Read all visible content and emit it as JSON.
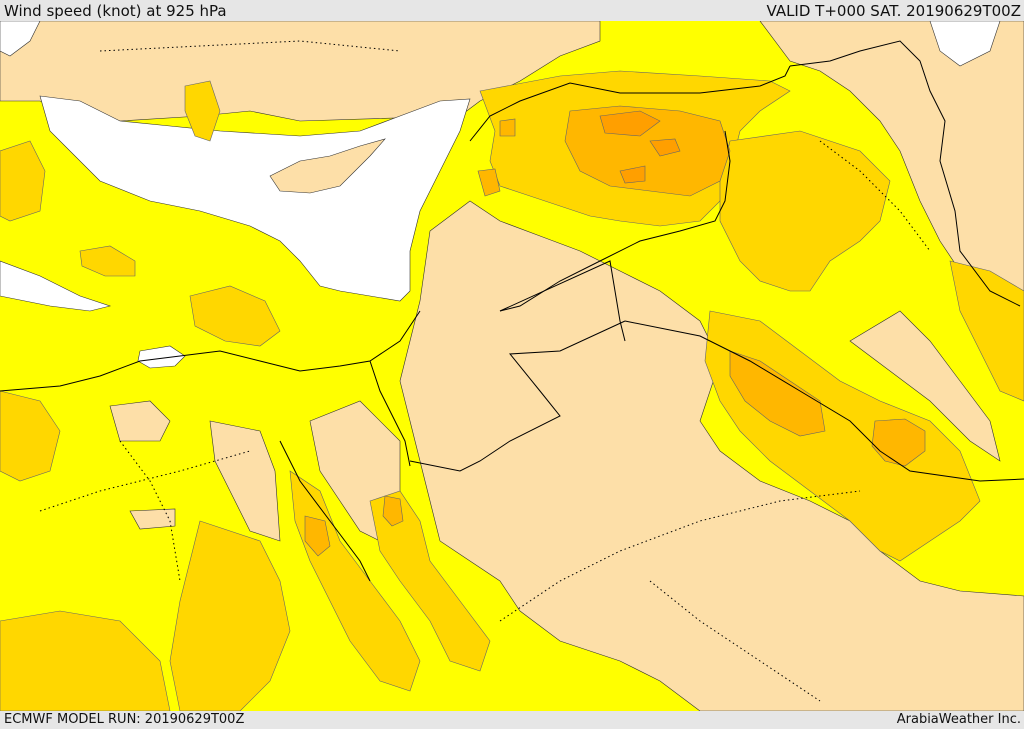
{
  "header": {
    "title": "Wind speed (knot) at 925 hPa",
    "valid_time": "VALID T+000 SAT. 20190629T00Z"
  },
  "footer": {
    "model_run": "ECMWF MODEL RUN: 20190629T00Z",
    "credit": "ArabiaWeather Inc."
  },
  "map": {
    "colors": {
      "sea": "#ffffff",
      "calm_land": "#fddfa8",
      "wind_level_1": "#ffff00",
      "wind_level_2": "#ffd700",
      "wind_level_3": "#ffb700",
      "wind_level_4": "#ff9f00",
      "border_line": "#000000"
    }
  }
}
